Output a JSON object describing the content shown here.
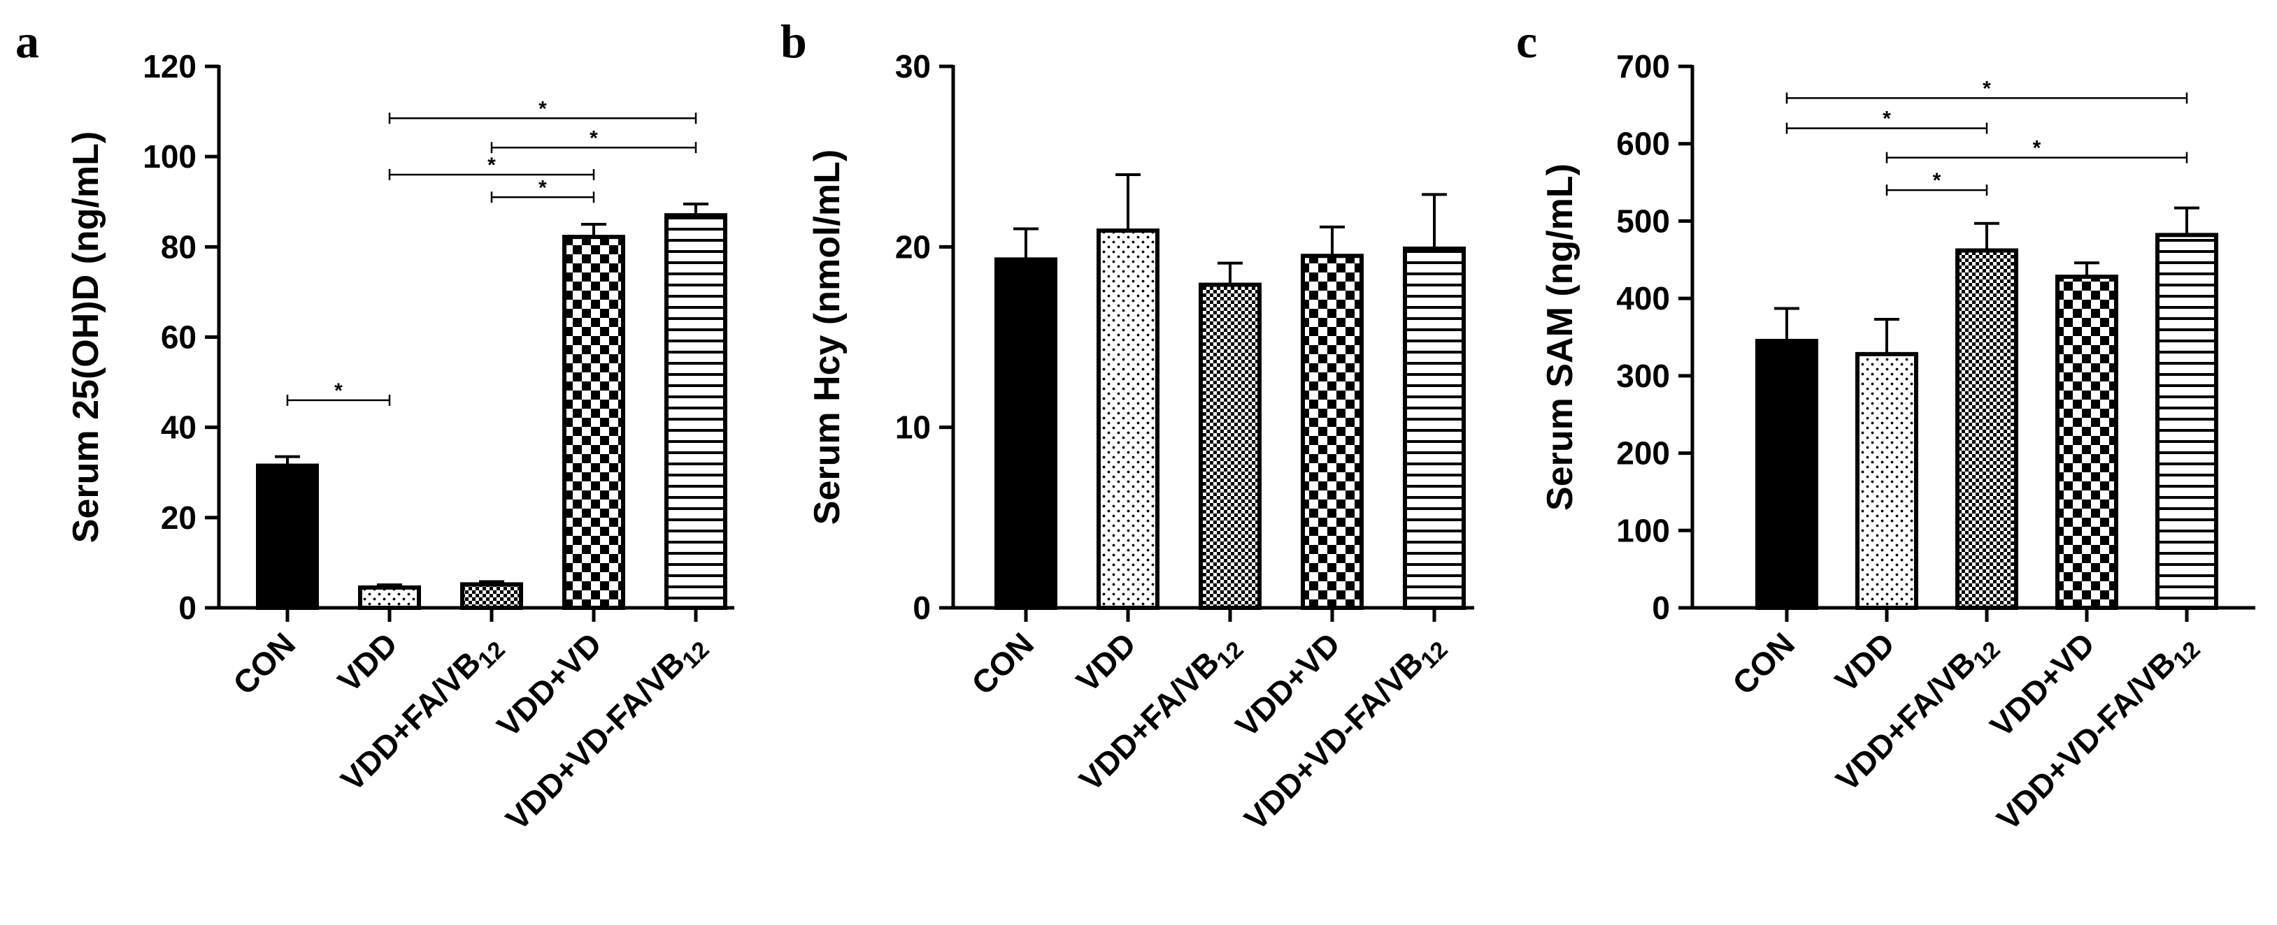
{
  "colors": {
    "ink": "#000000",
    "background": "#ffffff"
  },
  "chart_data": [
    {
      "panel": "a",
      "type": "bar",
      "ylabel": "Serum 25(OH)D (ng/mL)",
      "xlabel": "",
      "ylim": [
        0,
        120
      ],
      "yticks": [
        "0",
        "20",
        "40",
        "60",
        "80",
        "100",
        "120"
      ],
      "categories": [
        "CON",
        "VDD",
        "VDD+FA/VB12",
        "VDD+VD",
        "VDD+VD-FA/VB12"
      ],
      "category_labels": [
        {
          "main": "CON",
          "sub": ""
        },
        {
          "main": "VDD",
          "sub": ""
        },
        {
          "main": "VDD+FA/VB",
          "sub": "12"
        },
        {
          "main": "VDD+VD",
          "sub": ""
        },
        {
          "main": "VDD+VD-FA/VB",
          "sub": "12"
        }
      ],
      "patterns": [
        "solid",
        "dots",
        "fine-check",
        "check",
        "hlines"
      ],
      "values": [
        31.5,
        4.5,
        5.2,
        82.2,
        87.0
      ],
      "errors": [
        2.0,
        0.6,
        0.6,
        2.8,
        2.5
      ],
      "significance": [
        {
          "from": 0,
          "to": 1,
          "y": 46,
          "label": "*"
        },
        {
          "from": 2,
          "to": 3,
          "y": 91,
          "label": "*"
        },
        {
          "from": 1,
          "to": 3,
          "y": 96,
          "label": "*"
        },
        {
          "from": 2,
          "to": 4,
          "y": 102,
          "label": "*"
        },
        {
          "from": 1,
          "to": 4,
          "y": 108.5,
          "label": "*"
        }
      ]
    },
    {
      "panel": "b",
      "type": "bar",
      "ylabel": "Serum Hcy (nmol/mL)",
      "xlabel": "",
      "ylim": [
        0,
        30
      ],
      "yticks": [
        "0",
        "10",
        "20",
        "30"
      ],
      "categories": [
        "CON",
        "VDD",
        "VDD+FA/VB12",
        "VDD+VD",
        "VDD+VD-FA/VB12"
      ],
      "category_labels": [
        {
          "main": "CON",
          "sub": ""
        },
        {
          "main": "VDD",
          "sub": ""
        },
        {
          "main": "VDD+FA/VB",
          "sub": "12"
        },
        {
          "main": "VDD+VD",
          "sub": ""
        },
        {
          "main": "VDD+VD-FA/VB",
          "sub": "12"
        }
      ],
      "patterns": [
        "solid",
        "dots",
        "fine-check",
        "check",
        "hlines"
      ],
      "values": [
        19.3,
        20.9,
        17.9,
        19.5,
        19.9
      ],
      "errors": [
        1.7,
        3.1,
        1.2,
        1.6,
        3.0
      ],
      "significance": []
    },
    {
      "panel": "c",
      "type": "bar",
      "ylabel": "Serum SAM (ng/mL)",
      "xlabel": "",
      "ylim": [
        0,
        700
      ],
      "yticks": [
        "0",
        "100",
        "200",
        "300",
        "400",
        "500",
        "600",
        "700"
      ],
      "categories": [
        "CON",
        "VDD",
        "VDD+FA/VB12",
        "VDD+VD",
        "VDD+VD-FA/VB12"
      ],
      "category_labels": [
        {
          "main": "CON",
          "sub": ""
        },
        {
          "main": "VDD",
          "sub": ""
        },
        {
          "main": "VDD+FA/VB",
          "sub": "12"
        },
        {
          "main": "VDD+VD",
          "sub": ""
        },
        {
          "main": "VDD+VD-FA/VB",
          "sub": "12"
        }
      ],
      "patterns": [
        "solid",
        "dots",
        "fine-check",
        "check",
        "hlines"
      ],
      "values": [
        345,
        328,
        462,
        428,
        482
      ],
      "errors": [
        42,
        45,
        35,
        18,
        35
      ],
      "significance": [
        {
          "from": 1,
          "to": 2,
          "y": 540,
          "label": "*"
        },
        {
          "from": 1,
          "to": 4,
          "y": 582,
          "label": "*"
        },
        {
          "from": 0,
          "to": 2,
          "y": 620,
          "label": "*"
        },
        {
          "from": 0,
          "to": 4,
          "y": 659,
          "label": "*"
        }
      ]
    }
  ]
}
